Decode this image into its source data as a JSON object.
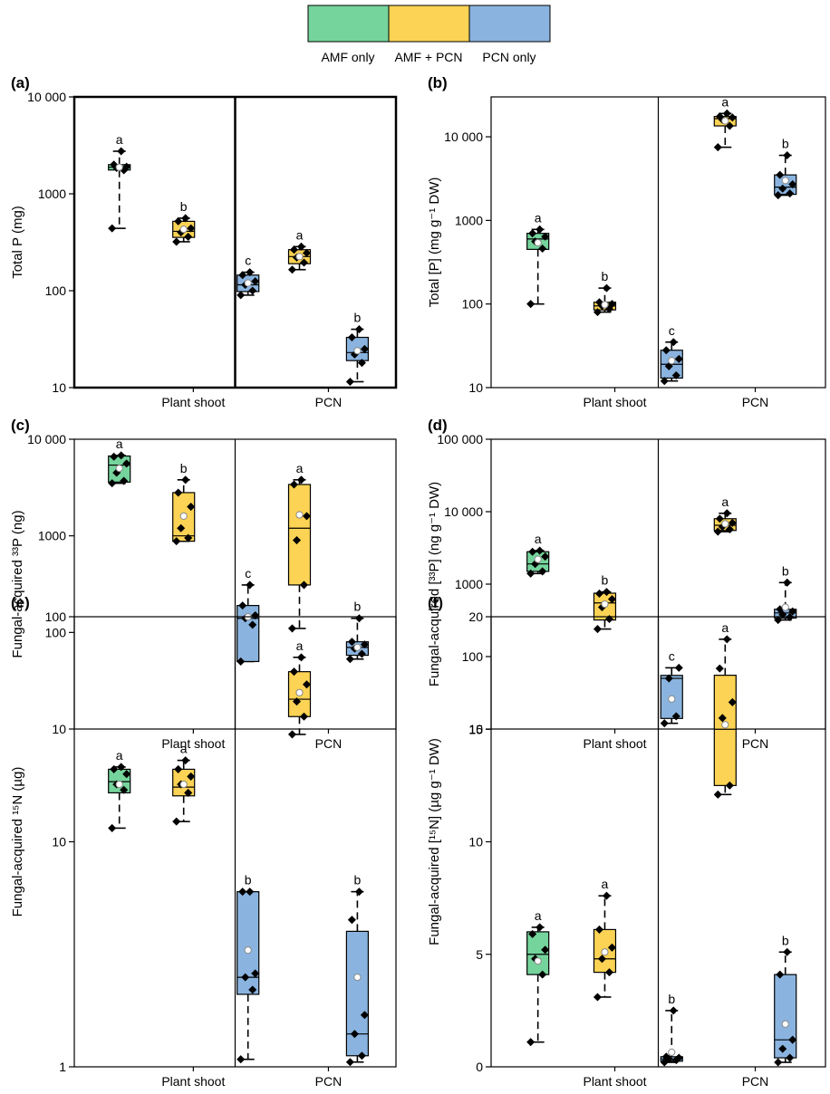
{
  "legend": {
    "items": [
      {
        "label": "AMF only",
        "color": "#75d49c"
      },
      {
        "label": "AMF + PCN",
        "color": "#fcd354"
      },
      {
        "label": "PCN only",
        "color": "#8ab4df"
      }
    ]
  },
  "chart_data": [
    {
      "type": "box",
      "panel_label": "(a)",
      "ylabel": "Total P (mg)",
      "yscale": "log",
      "ylim": [
        10,
        10000
      ],
      "yticks": [
        "10",
        "100",
        "1000",
        "10 000"
      ],
      "groups": [
        "Plant shoot",
        "PCN"
      ],
      "series": [
        {
          "name": "AMF only",
          "group": "Plant shoot",
          "q1": 1760,
          "median": 1880,
          "q3": 2000,
          "whisker_low": 440,
          "whisker_high": 2750,
          "mean": 1880,
          "letter": "a",
          "points": [
            440,
            1750,
            1850,
            1900,
            2000,
            2750
          ]
        },
        {
          "name": "AMF + PCN",
          "group": "Plant shoot",
          "q1": 355,
          "median": 410,
          "q3": 520,
          "whisker_low": 320,
          "whisker_high": 560,
          "mean": 430,
          "letter": "b",
          "points": [
            320,
            360,
            400,
            440,
            520,
            560
          ]
        },
        {
          "name": "PCN only",
          "group": "Plant shoot",
          "q1": 98,
          "median": 115,
          "q3": 145,
          "whisker_low": 90,
          "whisker_high": 155,
          "mean": 120,
          "letter": "c",
          "points": [
            90,
            100,
            115,
            125,
            145,
            155
          ]
        },
        {
          "name": "AMF + PCN",
          "group": "PCN",
          "q1": 190,
          "median": 225,
          "q3": 265,
          "whisker_low": 165,
          "whisker_high": 285,
          "mean": 225,
          "letter": "a",
          "points": [
            165,
            195,
            220,
            245,
            265,
            285
          ]
        },
        {
          "name": "PCN only",
          "group": "PCN",
          "q1": 19,
          "median": 23,
          "q3": 33,
          "whisker_low": 11.5,
          "whisker_high": 40,
          "mean": 24,
          "letter": "b",
          "points": [
            11.5,
            18,
            22,
            25,
            33,
            40
          ]
        }
      ]
    },
    {
      "type": "box",
      "panel_label": "(b)",
      "ylabel": "Total [P] (mg g⁻¹ DW)",
      "yscale": "log",
      "ylim": [
        10,
        30000
      ],
      "yticks": [
        "10",
        "100",
        "1000",
        "10 000"
      ],
      "groups": [
        "Plant shoot",
        "PCN"
      ],
      "series": [
        {
          "name": "AMF only",
          "group": "Plant shoot",
          "q1": 450,
          "median": 600,
          "q3": 700,
          "whisker_low": 100,
          "whisker_high": 780,
          "mean": 540,
          "letter": "a",
          "points": [
            100,
            460,
            560,
            640,
            700,
            780
          ]
        },
        {
          "name": "AMF + PCN",
          "group": "Plant shoot",
          "q1": 85,
          "median": 95,
          "q3": 105,
          "whisker_low": 80,
          "whisker_high": 155,
          "mean": 98,
          "letter": "b",
          "points": [
            80,
            87,
            95,
            100,
            105,
            155
          ]
        },
        {
          "name": "PCN only",
          "group": "Plant shoot",
          "q1": 13,
          "median": 19,
          "q3": 28,
          "whisker_low": 12,
          "whisker_high": 35,
          "mean": 21,
          "letter": "c",
          "points": [
            12,
            14,
            18,
            22,
            28,
            35
          ]
        },
        {
          "name": "AMF + PCN",
          "group": "PCN",
          "q1": 13500,
          "median": 16500,
          "q3": 17500,
          "whisker_low": 7500,
          "whisker_high": 19000,
          "mean": 15500,
          "letter": "a",
          "points": [
            7500,
            13500,
            16000,
            17000,
            17500,
            19000
          ]
        },
        {
          "name": "PCN only",
          "group": "PCN",
          "q1": 2050,
          "median": 2500,
          "q3": 3500,
          "whisker_low": 2000,
          "whisker_high": 6000,
          "mean": 3000,
          "letter": "b",
          "points": [
            2000,
            2100,
            2400,
            2700,
            3500,
            6000
          ]
        }
      ]
    },
    {
      "type": "box",
      "panel_label": "(c)",
      "ylabel": "Fungal-acquired ³³P (ng)",
      "yscale": "log",
      "ylim": [
        10,
        10000
      ],
      "yticks": [
        "10",
        "100",
        "1000",
        "10 000"
      ],
      "groups": [
        "Plant shoot",
        "PCN"
      ],
      "series": [
        {
          "name": "AMF only",
          "group": "Plant shoot",
          "q1": 3600,
          "median": 5400,
          "q3": 6700,
          "whisker_low": 3500,
          "whisker_high": 6800,
          "mean": 5000,
          "letter": "a",
          "points": [
            3500,
            3700,
            4500,
            5600,
            6600,
            6800
          ]
        },
        {
          "name": "AMF + PCN",
          "group": "Plant shoot",
          "q1": 880,
          "median": 1000,
          "q3": 2800,
          "whisker_low": 880,
          "whisker_high": 3800,
          "mean": 1600,
          "letter": "b",
          "points": [
            880,
            950,
            1200,
            2000,
            2800,
            3800
          ]
        },
        {
          "name": "PCN only",
          "group": "Plant shoot",
          "q1": 50,
          "median": 140,
          "q3": 190,
          "whisker_low": 50,
          "whisker_high": 310,
          "mean": 145,
          "letter": "c",
          "points": [
            50,
            120,
            140,
            150,
            190,
            310
          ]
        },
        {
          "name": "AMF + PCN",
          "group": "PCN",
          "q1": 310,
          "median": 1200,
          "q3": 3400,
          "whisker_low": 110,
          "whisker_high": 3800,
          "mean": 1650,
          "letter": "a",
          "points": [
            110,
            310,
            900,
            1600,
            3400,
            3800
          ]
        },
        {
          "name": "PCN only",
          "group": "PCN",
          "q1": 58,
          "median": 70,
          "q3": 80,
          "whisker_low": 53,
          "whisker_high": 140,
          "mean": 70,
          "letter": "b",
          "points": [
            53,
            60,
            68,
            75,
            80,
            140
          ]
        }
      ]
    },
    {
      "type": "box",
      "panel_label": "(d)",
      "ylabel": "Fungal-acquired [³³P] (ng g⁻¹ DW)",
      "yscale": "log",
      "ylim": [
        10,
        100000
      ],
      "yticks": [
        "10",
        "100",
        "1000",
        "10 000",
        "100 000"
      ],
      "groups": [
        "Plant shoot",
        "PCN"
      ],
      "series": [
        {
          "name": "AMF only",
          "group": "Plant shoot",
          "q1": 1500,
          "median": 1900,
          "q3": 2800,
          "whisker_low": 1400,
          "whisker_high": 2900,
          "mean": 2200,
          "letter": "a",
          "points": [
            1400,
            1500,
            1900,
            2400,
            2800,
            2900
          ]
        },
        {
          "name": "AMF + PCN",
          "group": "Plant shoot",
          "q1": 320,
          "median": 550,
          "q3": 750,
          "whisker_low": 240,
          "whisker_high": 780,
          "mean": 530,
          "letter": "b",
          "points": [
            240,
            330,
            480,
            620,
            740,
            780
          ]
        },
        {
          "name": "PCN only",
          "group": "Plant shoot",
          "q1": 14,
          "median": 50,
          "q3": 55,
          "whisker_low": 12,
          "whisker_high": 70,
          "mean": 26,
          "letter": "c",
          "points": [
            12,
            15,
            50,
            70
          ]
        },
        {
          "name": "AMF + PCN",
          "group": "PCN",
          "q1": 5500,
          "median": 6500,
          "q3": 8000,
          "whisker_low": 5300,
          "whisker_high": 9500,
          "mean": 6800,
          "letter": "a",
          "points": [
            5300,
            5700,
            6200,
            7000,
            8000,
            9500
          ]
        },
        {
          "name": "PCN only",
          "group": "PCN",
          "q1": 340,
          "median": 400,
          "q3": 450,
          "whisker_low": 320,
          "whisker_high": 1050,
          "mean": 480,
          "letter": "b",
          "points": [
            320,
            350,
            380,
            420,
            450,
            1050
          ]
        }
      ]
    },
    {
      "type": "box",
      "panel_label": "(e)",
      "ylabel": "Fungal-acquired ¹⁵N (µg)",
      "yscale": "log",
      "ylim": [
        1,
        100
      ],
      "yticks": [
        "1",
        "10",
        "100"
      ],
      "groups": [
        "Plant shoot",
        "PCN"
      ],
      "series": [
        {
          "name": "AMF only",
          "group": "Plant shoot",
          "q1": 16.5,
          "median": 18.5,
          "q3": 21,
          "whisker_low": 11.5,
          "whisker_high": 21.5,
          "mean": 18,
          "letter": "a",
          "points": [
            11.5,
            17,
            18,
            20,
            21,
            21.5
          ]
        },
        {
          "name": "AMF + PCN",
          "group": "Plant shoot",
          "q1": 16,
          "median": 17.5,
          "q3": 21,
          "whisker_low": 12.3,
          "whisker_high": 23,
          "mean": 18,
          "letter": "a",
          "points": [
            12.3,
            16.5,
            18,
            19.5,
            21,
            23
          ]
        },
        {
          "name": "PCN only",
          "group": "Plant shoot",
          "q1": 2.1,
          "median": 2.5,
          "q3": 6,
          "whisker_low": 1.08,
          "whisker_high": 6,
          "mean": 3.3,
          "letter": "b",
          "points": [
            1.08,
            2.2,
            2.5,
            2.6,
            6,
            6
          ]
        },
        {
          "name": "AMF + PCN",
          "group": "PCN",
          "q1": 36,
          "median": 43,
          "q3": 57,
          "whisker_low": 30,
          "whisker_high": 66,
          "mean": 46,
          "letter": "a",
          "points": [
            30,
            36,
            42,
            50,
            57,
            66
          ]
        },
        {
          "name": "PCN only",
          "group": "PCN",
          "q1": 1.12,
          "median": 1.4,
          "q3": 4,
          "whisker_low": 1.05,
          "whisker_high": 6,
          "mean": 2.5,
          "letter": "b",
          "points": [
            1.05,
            1.12,
            1.4,
            1.7,
            4.5,
            6
          ]
        }
      ]
    },
    {
      "type": "box",
      "panel_label": "(f)",
      "ylabel": "Fungal-acquired [¹⁵N] (µg g⁻¹ DW)",
      "yscale": "linear",
      "ylim": [
        0,
        20
      ],
      "yticks": [
        "0",
        "5",
        "10",
        "15",
        "20"
      ],
      "groups": [
        "Plant shoot",
        "PCN"
      ],
      "series": [
        {
          "name": "AMF only",
          "group": "Plant shoot",
          "q1": 4.1,
          "median": 5,
          "q3": 6,
          "whisker_low": 1.1,
          "whisker_high": 6.2,
          "mean": 4.7,
          "letter": "a",
          "points": [
            1.1,
            4.1,
            4.8,
            5.2,
            5.9,
            6.2
          ]
        },
        {
          "name": "AMF + PCN",
          "group": "Plant shoot",
          "q1": 4.2,
          "median": 4.8,
          "q3": 6.1,
          "whisker_low": 3.1,
          "whisker_high": 7.6,
          "mean": 5.1,
          "letter": "a",
          "points": [
            3.1,
            4.2,
            4.8,
            5.3,
            6.1,
            7.6
          ]
        },
        {
          "name": "PCN only",
          "group": "Plant shoot",
          "q1": 0.25,
          "median": 0.35,
          "q3": 0.45,
          "whisker_low": 0.2,
          "whisker_high": 2.5,
          "mean": 0.65,
          "letter": "b",
          "points": [
            0.2,
            0.3,
            0.35,
            0.4,
            0.45,
            2.5
          ]
        },
        {
          "name": "AMF + PCN",
          "group": "PCN",
          "q1": 12.5,
          "median": 15,
          "q3": 17.4,
          "whisker_low": 12.1,
          "whisker_high": 19,
          "mean": 15.2,
          "letter": "a",
          "points": [
            12.1,
            12.5,
            15.5,
            16.2,
            17.7,
            19
          ]
        },
        {
          "name": "PCN only",
          "group": "PCN",
          "q1": 0.4,
          "median": 1.2,
          "q3": 4.1,
          "whisker_low": 0.2,
          "whisker_high": 5.1,
          "mean": 1.9,
          "letter": "b",
          "points": [
            0.2,
            0.4,
            0.8,
            1.2,
            4.1,
            5.1
          ]
        }
      ]
    }
  ]
}
